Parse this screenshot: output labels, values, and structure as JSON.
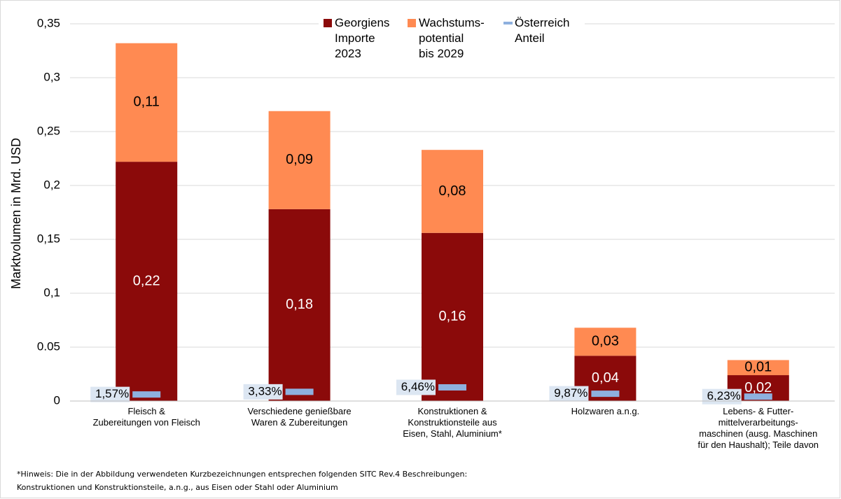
{
  "chart_data": {
    "type": "stacked-bar",
    "y_axis_label": "Marktvolumen in Mrd. USD",
    "categories": [
      [
        "Fleisch &",
        "Zubereitungen von Fleisch"
      ],
      [
        "Verschiedene genießbare",
        "Waren & Zubereitungen"
      ],
      [
        "Konstruktionen &",
        "Konstruktionsteile aus",
        "Eisen, Stahl, Aluminium*"
      ],
      [
        "Holzwaren a.n.g."
      ],
      [
        "Lebens- & Futter-",
        "mittelverarbeitungs-",
        "maschinen (ausg. Maschinen",
        "für den Haushalt); Teile davon"
      ]
    ],
    "series": [
      {
        "name": [
          "Georgiens",
          "Importe",
          "2023"
        ],
        "color": "#8b0a0a",
        "values": [
          0.222,
          0.178,
          0.156,
          0.042,
          0.024
        ],
        "value_labels": [
          "0,22",
          "0,18",
          "0,16",
          "0,04",
          "0,02"
        ]
      },
      {
        "name": [
          "Wachstums-",
          "potential",
          "bis 2029"
        ],
        "color": "#ff8a52",
        "values": [
          0.11,
          0.091,
          0.077,
          0.026,
          0.014
        ],
        "value_labels": [
          "0,11",
          "0,09",
          "0,08",
          "0,03",
          "0,01"
        ]
      },
      {
        "name": [
          "Österreich",
          "Anteil"
        ],
        "color": "#8eb0de",
        "kind": "share",
        "values": [
          1.57,
          3.33,
          6.46,
          9.87,
          6.23
        ],
        "value_labels": [
          "1,57%",
          "3,33%",
          "6,46%",
          "9,87%",
          "6,23%"
        ]
      }
    ],
    "ylim": [
      0,
      0.35
    ],
    "yticks": [
      0,
      {
        "value": 0.05,
        "label": "0.05"
      },
      {
        "value": 0.1,
        "label": "0,1"
      },
      {
        "value": 0.15,
        "label": "0,15"
      },
      {
        "value": 0.2,
        "label": "0,2"
      },
      {
        "value": 0.25,
        "label": "0,25"
      },
      {
        "value": 0.3,
        "label": "0,3"
      },
      {
        "value": 0.35,
        "label": "0,35"
      }
    ],
    "grid": true,
    "legend": "top",
    "footnote": [
      "*Hinweis: Die in der Abbildung verwendeten Kurzbezeichnungen entsprechen folgenden SITC Rev.4 Beschreibungen:",
      "Konstruktionen und Konstruktionsteile, a.n.g., aus Eisen oder Stahl oder Aluminium"
    ]
  }
}
